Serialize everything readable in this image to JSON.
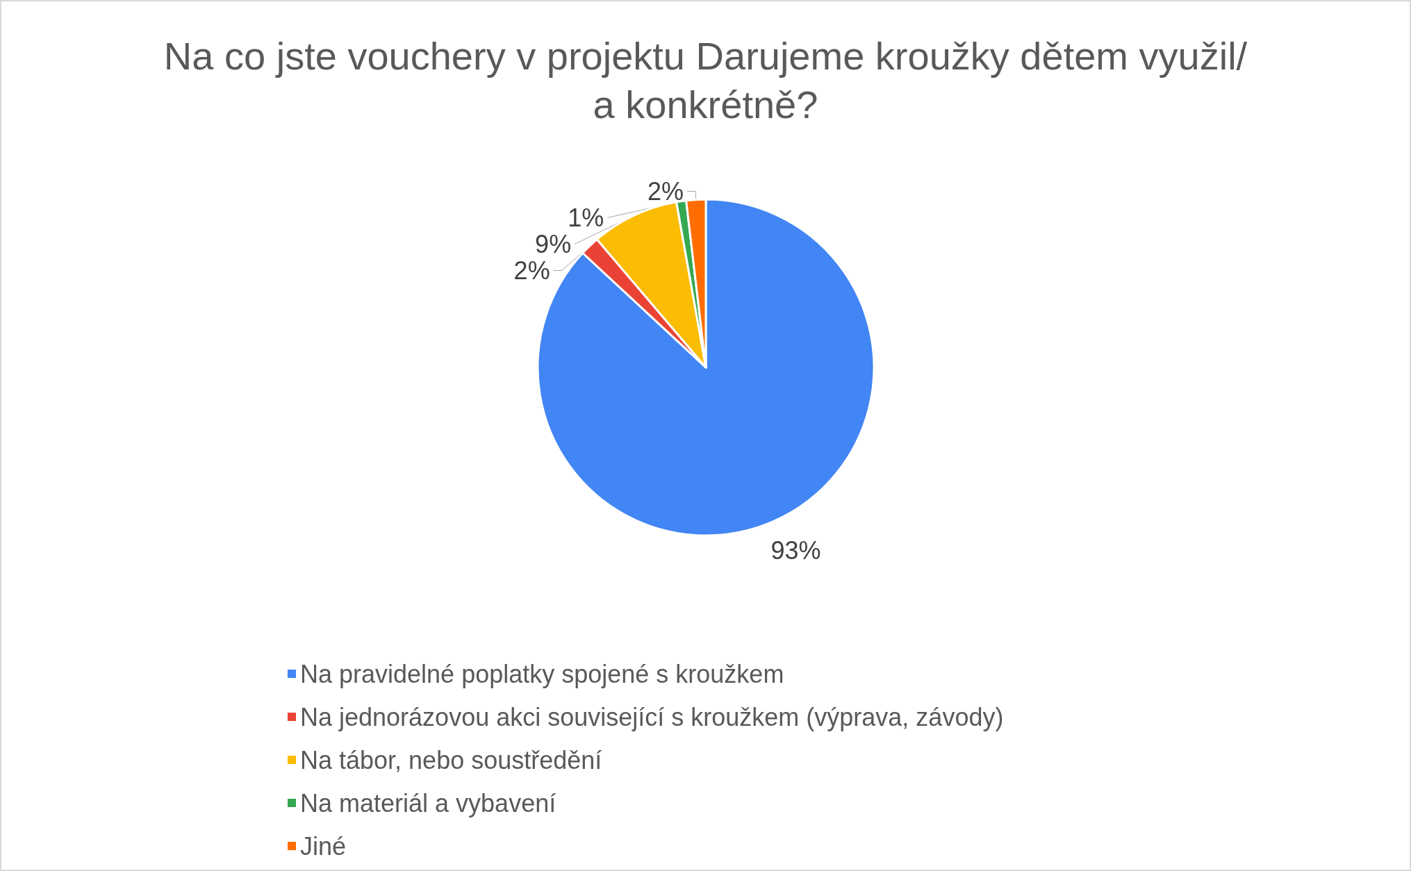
{
  "chart_data": {
    "type": "pie",
    "title": "Na co jste vouchery v projektu Darujeme kroužky dětem využil/a konkrétně?",
    "categories": [
      "Na pravidelné poplatky spojené s kroužkem",
      "Na jednorázovou akci související s kroužkem (výprava, závody)",
      "Na tábor, nebo soustředění",
      "Na materiál a vybavení",
      "Jiné"
    ],
    "values": [
      93,
      2,
      9,
      1,
      2
    ],
    "value_labels": [
      "93%",
      "2%",
      "9%",
      "1%",
      "2%"
    ],
    "colors": [
      "#4285f4",
      "#ea4335",
      "#fbbc04",
      "#34a853",
      "#ff6d01"
    ],
    "legend": "bottom"
  }
}
